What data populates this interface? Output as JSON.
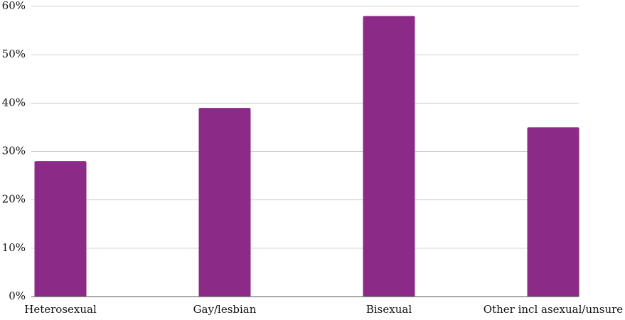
{
  "chart_data": {
    "type": "bar",
    "categories": [
      "Heterosexual",
      "Gay/lesbian",
      "Bisexual",
      "Other incl asexual/unsure"
    ],
    "values": [
      28,
      39,
      58,
      35
    ],
    "color": "#8b2a87",
    "ylim": [
      0,
      60
    ],
    "yticks": [
      {
        "value": 0,
        "label": "0%"
      },
      {
        "value": 10,
        "label": "10%"
      },
      {
        "value": 20,
        "label": "20%"
      },
      {
        "value": 30,
        "label": "30%"
      },
      {
        "value": 40,
        "label": "40%"
      },
      {
        "value": 50,
        "label": "50%"
      },
      {
        "value": 60,
        "label": "60%"
      }
    ],
    "grid": true
  }
}
